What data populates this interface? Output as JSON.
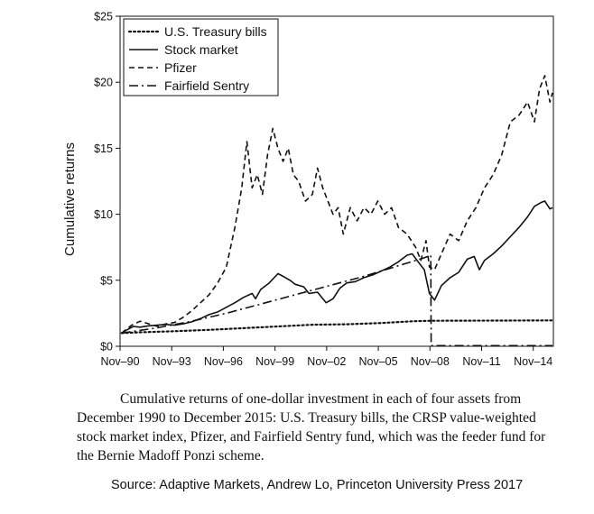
{
  "chart_data": {
    "type": "line",
    "title": "",
    "xlabel": "",
    "ylabel": "Cumulative returns",
    "x_tick_labels": [
      "Nov–90",
      "Nov–93",
      "Nov–96",
      "Nov–99",
      "Nov–02",
      "Nov–05",
      "Nov–08",
      "Nov–11",
      "Nov–14"
    ],
    "x_ticks": [
      1990.83,
      1993.83,
      1996.83,
      1999.83,
      2002.83,
      2005.83,
      2008.83,
      2011.83,
      2014.83
    ],
    "xlim": [
      1990.83,
      2016.0
    ],
    "y_tick_labels": [
      "$0",
      "$5",
      "$10",
      "$15",
      "$20",
      "$25"
    ],
    "y_ticks": [
      0,
      5,
      10,
      15,
      20,
      25
    ],
    "ylim": [
      0,
      25
    ],
    "grid": false,
    "legend_position": "top-left",
    "series": [
      {
        "name": "U.S. Treasury bills",
        "style": "dotted",
        "x": [
          1990.92,
          1992,
          1994,
          1996,
          1998,
          2000,
          2002,
          2004,
          2006,
          2007.9,
          2009,
          2011,
          2013,
          2015.9
        ],
        "y": [
          1.0,
          1.06,
          1.14,
          1.24,
          1.37,
          1.5,
          1.63,
          1.67,
          1.76,
          1.9,
          1.93,
          1.94,
          1.95,
          1.96
        ]
      },
      {
        "name": "Stock market",
        "style": "solid",
        "x": [
          1990.92,
          1991.3,
          1991.6,
          1992.0,
          1992.5,
          1993.0,
          1993.5,
          1994.0,
          1994.5,
          1995.0,
          1995.5,
          1996.0,
          1996.5,
          1997.0,
          1997.5,
          1998.0,
          1998.5,
          1998.7,
          1999.0,
          1999.5,
          2000.0,
          2000.3,
          2000.7,
          2001.0,
          2001.5,
          2001.8,
          2002.3,
          2002.8,
          2003.2,
          2003.6,
          2004.0,
          2004.5,
          2005.0,
          2005.5,
          2006.0,
          2006.5,
          2007.0,
          2007.5,
          2007.8,
          2008.2,
          2008.5,
          2008.8,
          2009.1,
          2009.5,
          2010.0,
          2010.5,
          2011.0,
          2011.4,
          2011.7,
          2012.0,
          2012.5,
          2013.0,
          2013.5,
          2014.0,
          2014.5,
          2014.9,
          2015.3,
          2015.5,
          2015.8,
          2015.95
        ],
        "y": [
          1.0,
          1.3,
          1.5,
          1.45,
          1.55,
          1.6,
          1.65,
          1.6,
          1.7,
          1.85,
          2.1,
          2.4,
          2.6,
          2.95,
          3.3,
          3.7,
          4.0,
          3.6,
          4.3,
          4.8,
          5.5,
          5.3,
          5.0,
          4.7,
          4.5,
          4.0,
          4.1,
          3.3,
          3.6,
          4.4,
          4.8,
          4.9,
          5.2,
          5.4,
          5.7,
          6.0,
          6.4,
          6.9,
          7.0,
          6.3,
          5.8,
          4.0,
          3.5,
          4.6,
          5.2,
          5.6,
          6.6,
          6.8,
          5.8,
          6.5,
          7.0,
          7.6,
          8.3,
          9.0,
          9.8,
          10.6,
          10.9,
          11.0,
          10.4,
          10.5
        ]
      },
      {
        "name": "Pfizer",
        "style": "dashed",
        "x": [
          1990.92,
          1991.5,
          1992.0,
          1992.5,
          1993.0,
          1993.5,
          1994.0,
          1994.5,
          1995.0,
          1995.5,
          1996.0,
          1996.5,
          1997.0,
          1997.5,
          1997.9,
          1998.2,
          1998.5,
          1998.8,
          1999.1,
          1999.4,
          1999.7,
          2000.0,
          2000.3,
          2000.6,
          2000.9,
          2001.2,
          2001.6,
          2002.0,
          2002.3,
          2002.6,
          2002.9,
          2003.2,
          2003.5,
          2003.8,
          2004.2,
          2004.6,
          2005.0,
          2005.4,
          2005.8,
          2006.2,
          2006.6,
          2007.0,
          2007.5,
          2008.0,
          2008.3,
          2008.6,
          2008.8,
          2009.1,
          2009.5,
          2010.0,
          2010.5,
          2011.0,
          2011.5,
          2012.0,
          2012.5,
          2013.0,
          2013.5,
          2014.0,
          2014.5,
          2014.9,
          2015.2,
          2015.5,
          2015.8,
          2015.95
        ],
        "y": [
          1.0,
          1.6,
          1.9,
          1.7,
          1.5,
          1.7,
          1.8,
          2.2,
          2.7,
          3.3,
          3.9,
          4.8,
          6.0,
          9.0,
          12.0,
          15.5,
          12.0,
          13.0,
          11.5,
          14.5,
          16.5,
          15.0,
          14.0,
          15.0,
          13.0,
          12.5,
          11.0,
          11.5,
          13.5,
          12.0,
          11.0,
          10.0,
          10.5,
          8.5,
          10.5,
          9.5,
          10.5,
          10.0,
          11.0,
          10.0,
          10.5,
          9.0,
          8.5,
          7.5,
          6.5,
          8.0,
          6.0,
          5.8,
          7.0,
          8.5,
          8.0,
          9.5,
          10.5,
          12.0,
          13.0,
          14.5,
          17.0,
          17.5,
          18.5,
          17.0,
          19.5,
          20.5,
          18.5,
          19.2
        ]
      },
      {
        "name": "Fairfield Sentry",
        "style": "dashdot",
        "x": [
          1990.92,
          1993,
          1995,
          1997,
          1999,
          2001,
          2003,
          2005,
          2007,
          2008.5,
          2008.88,
          2008.9,
          2011,
          2013,
          2015.95
        ],
        "y": [
          1.0,
          1.4,
          1.9,
          2.5,
          3.2,
          3.9,
          4.6,
          5.3,
          6.1,
          6.7,
          6.9,
          0.05,
          0.05,
          0.05,
          0.05
        ]
      }
    ]
  },
  "caption": "Cumulative returns of one-dollar investment in each of four assets from December 1990 to December 2015: U.S. Treasury bills, the CRSP value-weighted stock market index, Pfizer, and Fairfield Sentry fund, which was the feeder fund for the Bernie Madoff Ponzi scheme.",
  "source": "Source: Adaptive Markets, Andrew Lo, Princeton University Press 2017"
}
